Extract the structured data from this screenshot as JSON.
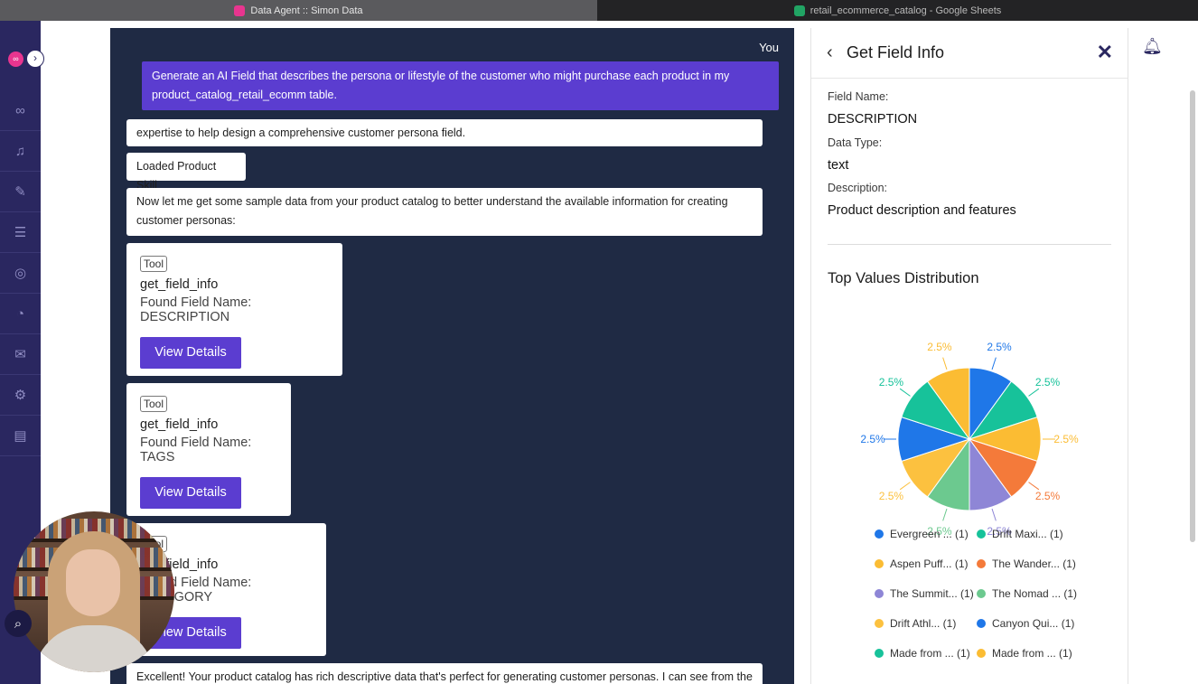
{
  "browser": {
    "tabs": [
      {
        "title": "Data Agent :: Simon Data",
        "active": true
      },
      {
        "title": "retail_ecommerce_catalog - Google Sheets",
        "active": false
      }
    ]
  },
  "nav": {
    "toggle_icon": "chevron-right-icon",
    "items": [
      "infinity-icon",
      "bell-icon",
      "tools-icon",
      "table-icon",
      "fingerprint-icon",
      "chart-icon",
      "mail-icon",
      "gear-icon",
      "document-icon"
    ]
  },
  "chat": {
    "sender_label": "You",
    "user_message": "Generate an AI Field that describes the persona or lifestyle of the customer who might purchase each product in my product_catalog_retail_ecomm table.",
    "msg_partial": "expertise to help design a comprehensive customer persona field.",
    "skill_label": "Loaded Product Skill",
    "msg_sample": "Now let me get some sample data from your product catalog to better understand the available information for creating customer personas:",
    "tools": [
      {
        "badge": "Tool",
        "name": "get_field_info",
        "found": "Found Field Name: DESCRIPTION",
        "button": "View Details"
      },
      {
        "badge": "Tool",
        "name": "get_field_info",
        "found": "Found Field Name: TAGS",
        "button": "View Details"
      },
      {
        "badge": "Tool",
        "name": "get_field_info",
        "found": "Found Field Name: CATEGORY",
        "button": "View Details"
      }
    ],
    "msg_excellent": "Excellent! Your product catalog has rich descriptive data that's perfect for generating customer personas. I can see from the"
  },
  "panel": {
    "title": "Get Field Info",
    "field_name_label": "Field Name:",
    "field_name": "DESCRIPTION",
    "data_type_label": "Data Type:",
    "data_type": "text",
    "description_label": "Description:",
    "description": "Product description and features",
    "dist_title": "Top Values Distribution"
  },
  "chart_data": {
    "type": "pie",
    "slices": [
      {
        "label": "Evergreen ... (1)",
        "value": 2.5,
        "color": "#1f77e8"
      },
      {
        "label": "Drift Maxi... (1)",
        "value": 2.5,
        "color": "#17c29a"
      },
      {
        "label": "Aspen Puff... (1)",
        "value": 2.5,
        "color": "#fbbc33"
      },
      {
        "label": "The Wander... (1)",
        "value": 2.5,
        "color": "#f47a3a"
      },
      {
        "label": "The Summit... (1)",
        "value": 2.5,
        "color": "#8e86d6"
      },
      {
        "label": "The Nomad ... (1)",
        "value": 2.5,
        "color": "#6cc98f"
      },
      {
        "label": "Drift Athl... (1)",
        "value": 2.5,
        "color": "#fcc13f"
      },
      {
        "label": "Canyon Qui... (1)",
        "value": 2.5,
        "color": "#1f77e8"
      },
      {
        "label": "Made from ... (1)",
        "value": 2.5,
        "color": "#17c29a"
      },
      {
        "label": "Made from ... (1)",
        "value": 2.5,
        "color": "#fbbc33"
      }
    ],
    "slice_label": "2.5%"
  }
}
